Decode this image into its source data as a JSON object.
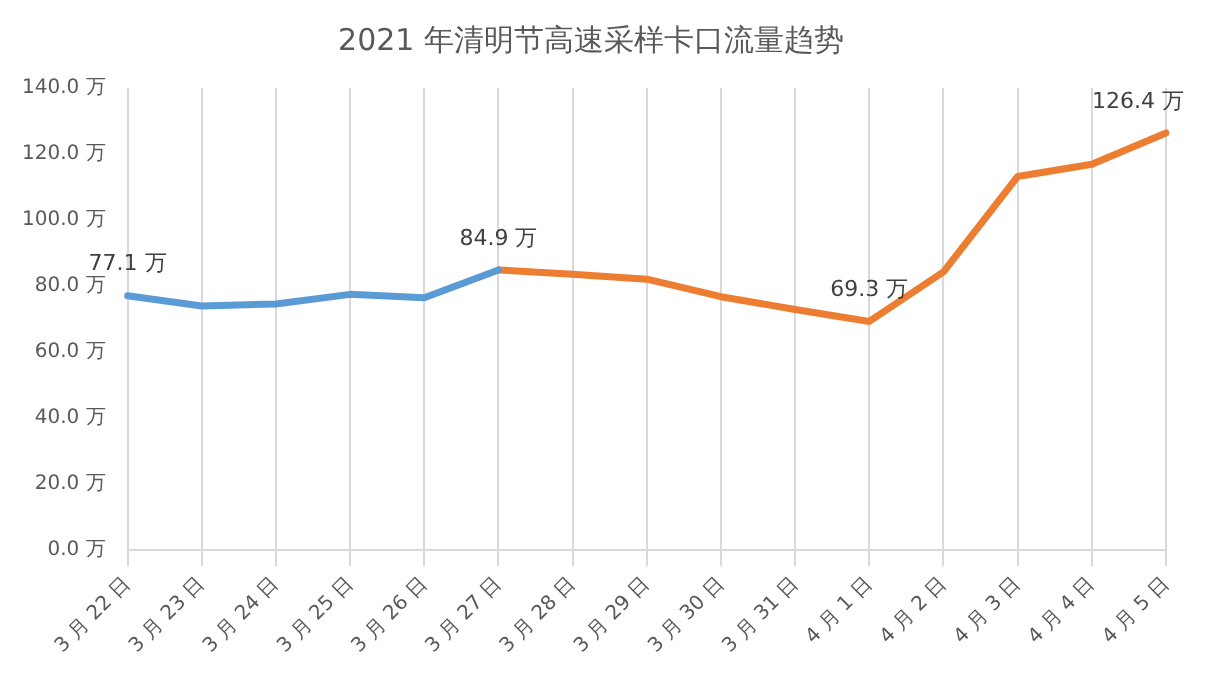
{
  "chart_data": {
    "type": "line",
    "title": "2021 年清明节高速采样卡口流量趋势",
    "categories": [
      "3 月 22 日",
      "3 月 23 日",
      "3 月 24 日",
      "3 月 25 日",
      "3 月 26 日",
      "3 月 27 日",
      "3 月 28 日",
      "3 月 29 日",
      "3 月 30 日",
      "3 月 31 日",
      "4 月 1 日",
      "4 月 2 日",
      "4 月 3 日",
      "4 月 4 日",
      "4 月 5 日"
    ],
    "series": [
      {
        "color": "#5b9bd5",
        "values": [
          77.1,
          74.0,
          74.6,
          77.5,
          76.5,
          84.9,
          null,
          null,
          null,
          null,
          null,
          null,
          null,
          null,
          null
        ],
        "value_labels": [
          "77.1 万",
          null,
          null,
          null,
          null,
          "84.9 万",
          null,
          null,
          null,
          null,
          null,
          null,
          null,
          null,
          null
        ]
      },
      {
        "color": "#ed7d31",
        "values": [
          null,
          null,
          null,
          null,
          null,
          84.9,
          83.6,
          82.1,
          76.8,
          72.9,
          69.3,
          84.3,
          113.2,
          116.9,
          126.4
        ],
        "value_labels": [
          null,
          null,
          null,
          null,
          null,
          null,
          null,
          null,
          null,
          null,
          "69.3 万",
          null,
          null,
          null,
          "126.4 万"
        ]
      }
    ],
    "ylim": [
      0,
      140
    ],
    "yticks": [
      {
        "value": 0,
        "label": "0.0 万"
      },
      {
        "value": 20,
        "label": "20.0 万"
      },
      {
        "value": 40,
        "label": "40.0 万"
      },
      {
        "value": 60,
        "label": "60.0 万"
      },
      {
        "value": 80,
        "label": "80.0 万"
      },
      {
        "value": 100,
        "label": "100.0 万"
      },
      {
        "value": 120,
        "label": "120.0 万"
      },
      {
        "value": 140,
        "label": "140.0 万"
      }
    ],
    "grid": "x",
    "legend": false,
    "marker": "none",
    "line_style": "solid"
  }
}
